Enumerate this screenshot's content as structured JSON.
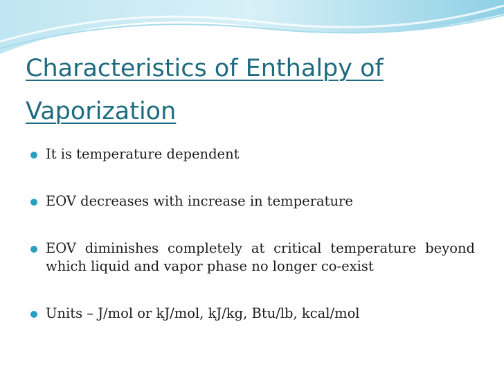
{
  "title": "Characteristics of Enthalpy of Vaporization",
  "bullets": [
    "It is temperature dependent",
    "EOV decreases with increase in temperature",
    "EOV diminishes completely at critical temperature beyond which liquid and vapor phase no longer co-exist",
    "Units – J/mol or kJ/mol, kJ/kg, Btu/lb, kcal/mol"
  ]
}
